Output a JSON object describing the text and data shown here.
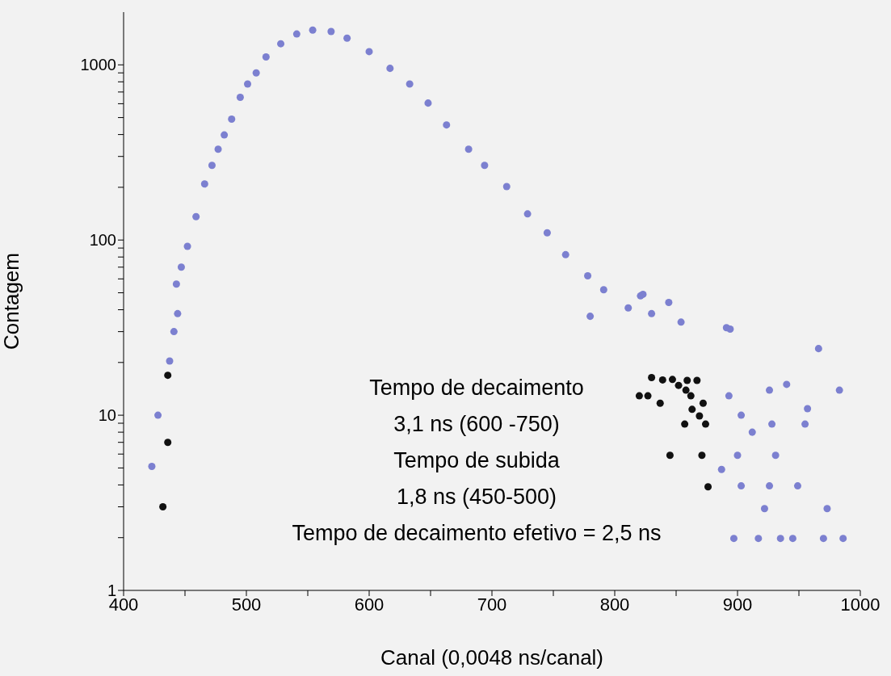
{
  "chart_data": {
    "type": "scatter",
    "xlabel": "Canal (0,0048 ns/canal)",
    "ylabel": "Contagem",
    "log": "y",
    "grid": false,
    "legend": false,
    "marker": "circle",
    "xlim": [
      400,
      1000
    ],
    "ylim": [
      1,
      2000
    ],
    "xticks": [
      400,
      {
        "value": 450,
        "label": null
      },
      500,
      {
        "value": 550,
        "label": null
      },
      600,
      {
        "value": 650,
        "label": null
      },
      700,
      {
        "value": 750,
        "label": null
      },
      800,
      {
        "value": 850,
        "label": null
      },
      900,
      {
        "value": 950,
        "label": null
      },
      1000
    ],
    "yticks": [
      1,
      {
        "value": 2,
        "label": null
      },
      {
        "value": 3,
        "label": null
      },
      {
        "value": 4,
        "label": null
      },
      {
        "value": 5,
        "label": null
      },
      {
        "value": 6,
        "label": null
      },
      {
        "value": 7,
        "label": null
      },
      {
        "value": 8,
        "label": null
      },
      {
        "value": 9,
        "label": null
      },
      10,
      {
        "value": 20,
        "label": null
      },
      {
        "value": 30,
        "label": null
      },
      {
        "value": 40,
        "label": null
      },
      {
        "value": 50,
        "label": null
      },
      {
        "value": 60,
        "label": null
      },
      {
        "value": 70,
        "label": null
      },
      {
        "value": 80,
        "label": null
      },
      {
        "value": 90,
        "label": null
      },
      100,
      {
        "value": 200,
        "label": null
      },
      {
        "value": 300,
        "label": null
      },
      {
        "value": 400,
        "label": null
      },
      {
        "value": 500,
        "label": null
      },
      {
        "value": 600,
        "label": null
      },
      {
        "value": 700,
        "label": null
      },
      {
        "value": 800,
        "label": null
      },
      {
        "value": 900,
        "label": null
      },
      1000
    ],
    "annotations": [
      "Tempo de decaimento",
      "3,1 ns (600 -750)",
      "Tempo de subida",
      "1,8 ns (450-500)",
      "Tempo de decaimento efetivo = 2,5 ns"
    ],
    "series": [
      {
        "color": "#7c80d0",
        "x": [
          437.5,
          428,
          423,
          441,
          444,
          443,
          447,
          452,
          459,
          466,
          472,
          477,
          482,
          488,
          495,
          501,
          508,
          516,
          528,
          541,
          554,
          569,
          582,
          600,
          617,
          633,
          648,
          663,
          681,
          694,
          712,
          729,
          745,
          760,
          778,
          791,
          811,
          821,
          830,
          854,
          891,
          780,
          823,
          844,
          894,
          966,
          893,
          926,
          940,
          957,
          903,
          928,
          955,
          912,
          900,
          931,
          887,
          903,
          926,
          949,
          922,
          973,
          897,
          917,
          935,
          945,
          970,
          986,
          983
        ],
        "values": [
          20.4,
          10,
          5.1,
          30,
          38,
          56,
          70,
          92,
          136,
          209,
          267,
          330,
          398,
          490,
          653,
          777,
          900,
          1110,
          1320,
          1500,
          1580,
          1550,
          1420,
          1190,
          955,
          777,
          605,
          454,
          330,
          267,
          202,
          141,
          110,
          82.5,
          62.5,
          52,
          41,
          48,
          38,
          34,
          31.6,
          36.7,
          49,
          44,
          31,
          24,
          12.9,
          13.9,
          15,
          10.9,
          10,
          8.9,
          8.9,
          8,
          5.9,
          5.9,
          4.9,
          3.95,
          3.95,
          3.95,
          2.93,
          2.93,
          1.98,
          1.98,
          1.98,
          1.98,
          1.98,
          1.98,
          13.9
        ]
      },
      {
        "color": "#111111",
        "x": [
          436,
          436,
          432,
          820,
          827,
          830,
          837,
          839,
          847,
          852,
          859,
          867,
          858,
          862,
          872,
          863,
          869,
          857,
          874,
          845,
          871,
          876
        ],
        "values": [
          16.9,
          7,
          3,
          12.9,
          12.9,
          16.4,
          11.7,
          15.9,
          16,
          14.8,
          15.8,
          15.8,
          13.9,
          12.9,
          11.7,
          10.8,
          9.9,
          8.9,
          8.9,
          5.9,
          5.9,
          3.9
        ]
      }
    ]
  }
}
